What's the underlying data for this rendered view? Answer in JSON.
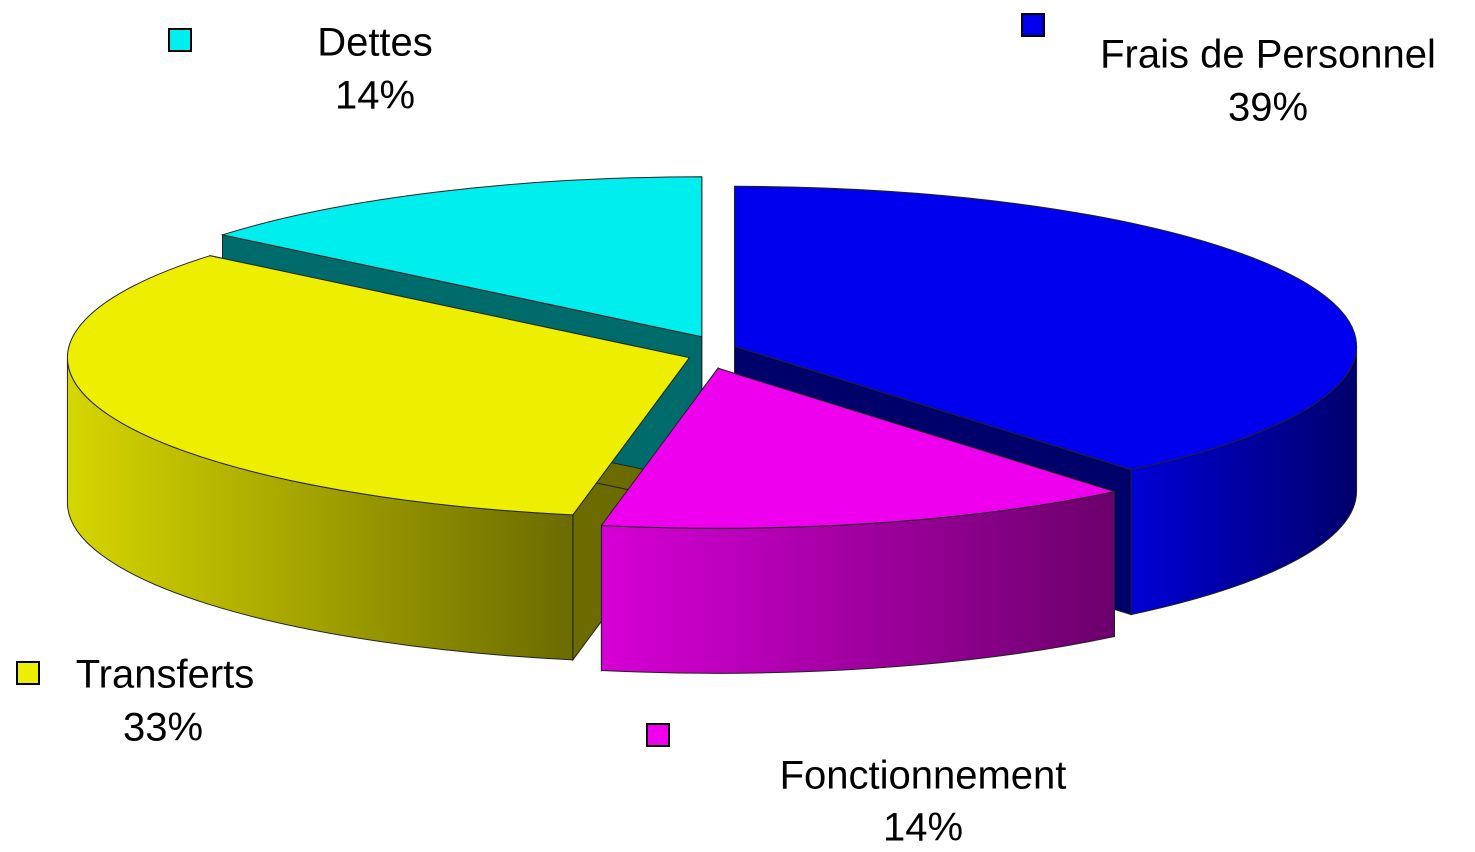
{
  "chart_data": {
    "type": "pie3d",
    "categories": [
      "Frais de Personnel",
      "Fonctionnement",
      "Transferts",
      "Dettes"
    ],
    "values": [
      39,
      14,
      33,
      14
    ],
    "value_labels": [
      "39%",
      "14%",
      "33%",
      "14%"
    ],
    "colors": [
      "#0000ee",
      "#ee00ee",
      "#eeee00",
      "#00eeee"
    ]
  }
}
